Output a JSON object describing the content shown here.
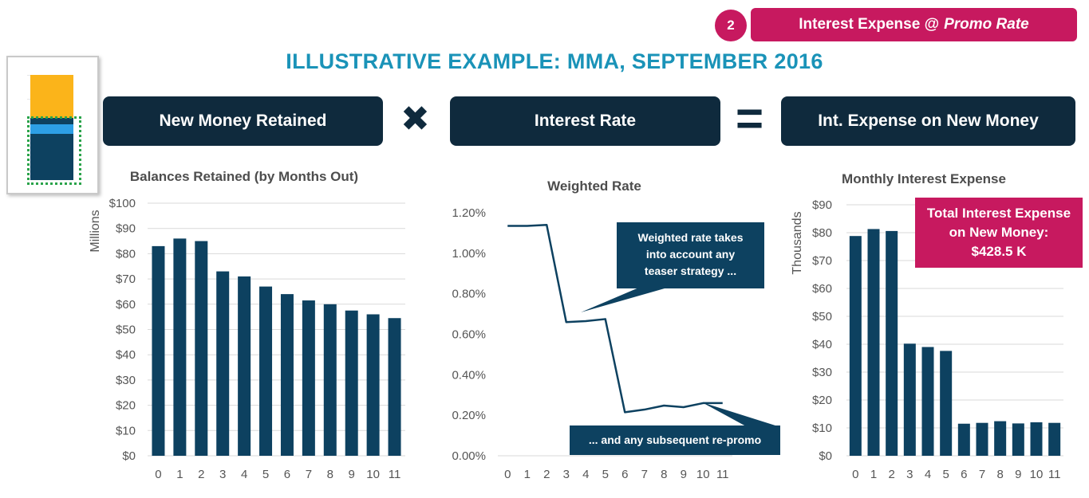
{
  "badge": {
    "step_number": "2",
    "label_prefix": "Interest Expense @",
    "label_emphasis": "Promo Rate"
  },
  "title": "ILLUSTRATIVE EXAMPLE: MMA, SEPTEMBER 2016",
  "equation": {
    "left": "New Money Retained",
    "times_symbol": "✖",
    "middle": "Interest Rate",
    "equals_symbol": "=",
    "right": "Int. Expense on New Money"
  },
  "colors": {
    "accent_pink": "#c7195f",
    "navy": "#0f2a3d",
    "bar": "#0d4160",
    "title_teal": "#1a93b8",
    "thumb_orange": "#fbb41a",
    "thumb_blue": "#2d9fe6",
    "thumb_dashed": "#2aa34a"
  },
  "thumbnail": {
    "icon": "stacked-bar-thumbnail-icon"
  },
  "callouts": {
    "weighted_note": [
      "Weighted rate takes",
      "into account any",
      "teaser strategy ..."
    ],
    "repromo_note": "... and any subsequent re-promo"
  },
  "total_box": [
    "Total Interest Expense",
    "on New Money:",
    "$428.5 K"
  ],
  "chart_data": [
    {
      "type": "bar",
      "title": "Balances Retained (by Months Out)",
      "ylabel": "Millions",
      "categories": [
        "0",
        "1",
        "2",
        "3",
        "4",
        "5",
        "6",
        "7",
        "8",
        "9",
        "10",
        "11"
      ],
      "values": [
        83,
        86,
        85,
        73,
        71,
        67,
        64,
        61.5,
        60,
        57.5,
        56,
        54.5
      ],
      "ylim": [
        0,
        100
      ],
      "yticks": [
        "$0",
        "$10",
        "$20",
        "$30",
        "$40",
        "$50",
        "$60",
        "$70",
        "$80",
        "$90",
        "$100"
      ],
      "grid": true
    },
    {
      "type": "line",
      "title": "Weighted Rate",
      "categories": [
        "0",
        "1",
        "2",
        "3",
        "4",
        "5",
        "6",
        "7",
        "8",
        "9",
        "10",
        "11"
      ],
      "values": [
        1.135,
        1.135,
        1.14,
        0.66,
        0.665,
        0.675,
        0.215,
        0.228,
        0.248,
        0.24,
        0.26,
        0.26
      ],
      "ylim": [
        0,
        1.2
      ],
      "yticks": [
        "0.00%",
        "0.20%",
        "0.40%",
        "0.60%",
        "0.80%",
        "1.00%",
        "1.20%"
      ],
      "grid": false
    },
    {
      "type": "bar",
      "title": "Monthly Interest Expense",
      "ylabel": "Thousands",
      "categories": [
        "0",
        "1",
        "2",
        "3",
        "4",
        "5",
        "6",
        "7",
        "8",
        "9",
        "10",
        "11"
      ],
      "values": [
        78.8,
        81.3,
        80.6,
        40.2,
        39.0,
        37.6,
        11.5,
        11.8,
        12.4,
        11.6,
        12.0,
        11.8
      ],
      "ylim": [
        0,
        90
      ],
      "yticks": [
        "$0",
        "$10",
        "$20",
        "$30",
        "$40",
        "$50",
        "$60",
        "$70",
        "$80",
        "$90"
      ],
      "grid": true
    }
  ]
}
